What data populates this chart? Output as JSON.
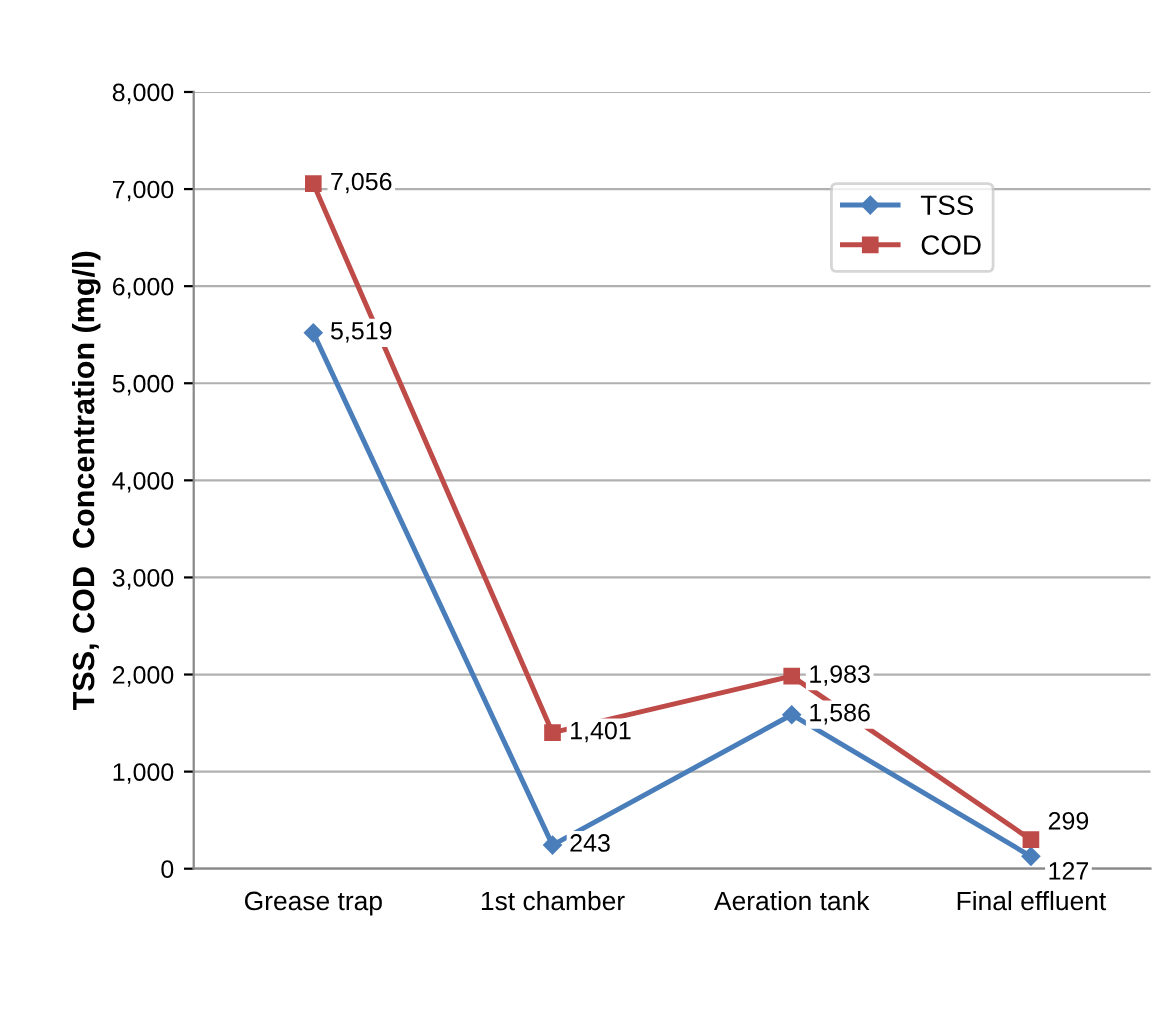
{
  "chart_data": {
    "type": "line",
    "ylabel": "TSS, COD  Concentration (mg/l)",
    "categories": [
      "Grease trap",
      "1st chamber",
      "Aeration tank",
      "Final effluent"
    ],
    "series": [
      {
        "name": "TSS",
        "color": "#4a7ebb",
        "marker": "diamond",
        "values": [
          5519,
          243,
          1586,
          127
        ],
        "value_labels": [
          "5,519",
          "243",
          "1,586",
          "127"
        ]
      },
      {
        "name": "COD",
        "color": "#be4b48",
        "marker": "square",
        "values": [
          7056,
          1401,
          1983,
          299
        ],
        "value_labels": [
          "7,056",
          "1,401",
          "1,983",
          "299"
        ]
      }
    ],
    "ylim": [
      0,
      8000
    ],
    "yticks": [
      0,
      {
        "value": 1000,
        "label": "1,000"
      },
      {
        "value": 2000,
        "label": "2,000"
      },
      {
        "value": 3000,
        "label": "3,000"
      },
      {
        "value": 4000,
        "label": "4,000"
      },
      {
        "value": 5000,
        "label": "5,000"
      },
      {
        "value": 6000,
        "label": "6,000"
      },
      {
        "value": 7000,
        "label": "7,000"
      },
      {
        "value": 8000,
        "label": "8,000"
      }
    ],
    "grid": "y",
    "legend": "top right"
  }
}
